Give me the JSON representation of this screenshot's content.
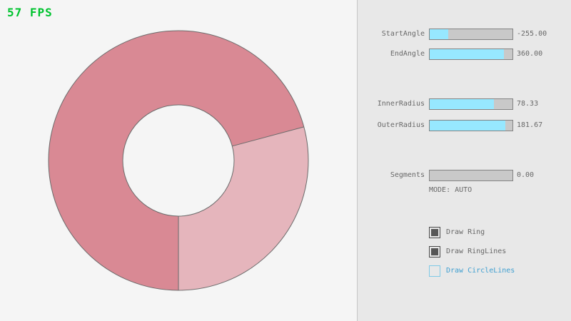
{
  "colors": {
    "bg": "#f5f5f5",
    "panel_bg": "#e8e8e8",
    "divider": "#c6c6c6",
    "slider_track": "#c9c9c9",
    "slider_border": "#838383",
    "slider_fill": "#97e8ff",
    "text": "#686868",
    "fps_green": "#00c32f",
    "ring_dark": "#d98994",
    "ring_light": "#e5b5bc",
    "ring_line": "#6b6b6b",
    "checkbox_checked": "#575757",
    "checkbox_checked_border": "#4a4a4a",
    "checkbox_focus_border": "#7fc9e6",
    "checkbox_focus_text": "#3f9fd0"
  },
  "fps": {
    "label": "57 FPS"
  },
  "panel": {
    "sliders": [
      {
        "label": "StartAngle",
        "value": "-255.00",
        "fill_pct": 22
      },
      {
        "label": "EndAngle",
        "value": "360.00",
        "fill_pct": 90
      },
      {
        "label": "InnerRadius",
        "value": "78.33",
        "fill_pct": 78
      },
      {
        "label": "OuterRadius",
        "value": "181.67",
        "fill_pct": 91
      },
      {
        "label": "Segments",
        "value": "0.00",
        "fill_pct": 0
      }
    ],
    "mode_text": "MODE: AUTO",
    "checkboxes": [
      {
        "label": "Draw Ring",
        "checked": true
      },
      {
        "label": "Draw RingLines",
        "checked": true
      },
      {
        "label": "Draw CircleLines",
        "checked": false
      }
    ]
  }
}
